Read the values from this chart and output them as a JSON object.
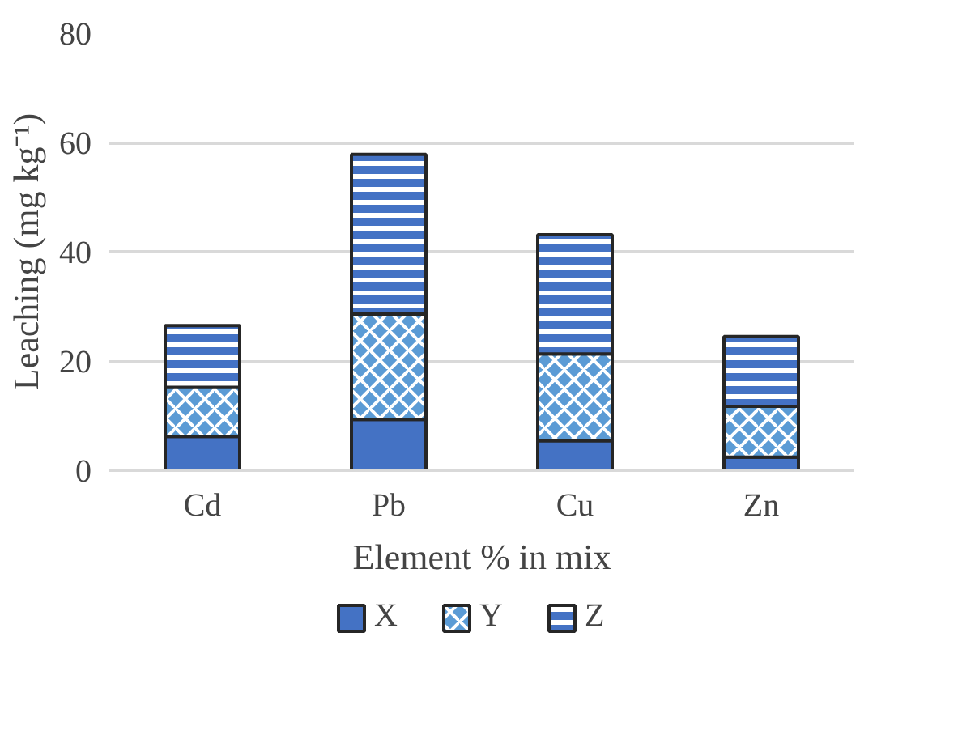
{
  "chart_data": {
    "type": "bar",
    "stacked": true,
    "xlabel": "Element % in mix",
    "ylabel": "Leaching (mg kg⁻¹)",
    "categories": [
      "Cd",
      "Pb",
      "Cu",
      "Zn"
    ],
    "series": [
      {
        "name": "X",
        "color": "#4472c4",
        "values": [
          6.2,
          9.3,
          5.4,
          2.4
        ]
      },
      {
        "name": "Y",
        "color": "#5b9bd5",
        "values": [
          9.0,
          19.3,
          15.9,
          9.3
        ]
      },
      {
        "name": "Z",
        "color": "#4472c4",
        "values": [
          11.3,
          29.2,
          21.8,
          12.8
        ]
      }
    ],
    "ylim": [
      0,
      80
    ],
    "yticks": [
      0,
      20,
      40,
      60,
      80
    ],
    "grid": "y",
    "legend": "bottom"
  }
}
